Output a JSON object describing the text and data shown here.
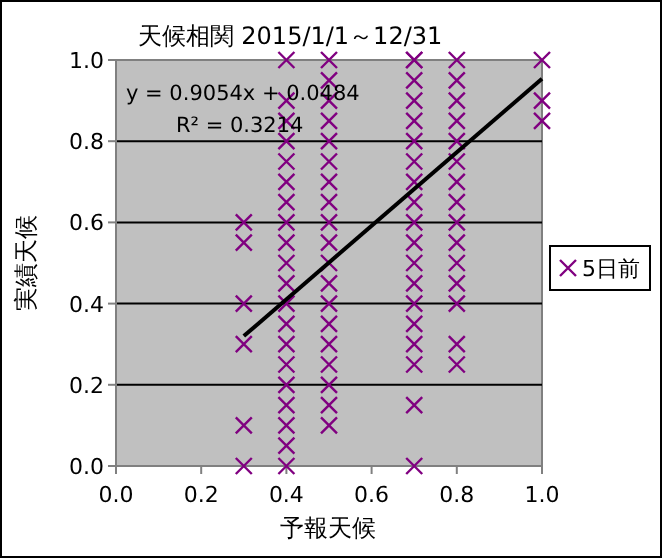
{
  "chart_data": {
    "type": "scatter",
    "title": "天候相関 2015/1/1～12/31",
    "xlabel": "予報天候",
    "ylabel": "実績天候",
    "xlim": [
      0,
      1
    ],
    "ylim": [
      0,
      1
    ],
    "xticks": [
      {
        "value": 0,
        "label": "0.0"
      },
      {
        "value": 0.2,
        "label": "0.2"
      },
      {
        "value": 0.4,
        "label": "0.4"
      },
      {
        "value": 0.6,
        "label": "0.6"
      },
      {
        "value": 0.8,
        "label": "0.8"
      },
      {
        "value": 1,
        "label": "1.0"
      }
    ],
    "yticks": [
      {
        "value": 0,
        "label": "0.0"
      },
      {
        "value": 0.2,
        "label": "0.2"
      },
      {
        "value": 0.4,
        "label": "0.4"
      },
      {
        "value": 0.6,
        "label": "0.6"
      },
      {
        "value": 0.8,
        "label": "0.8"
      },
      {
        "value": 1,
        "label": "1.0"
      }
    ],
    "grid": "y",
    "legend": "right",
    "marker": "cross",
    "annotations": [
      "y = 0.9054x + 0.0484",
      "R² = 0.3214"
    ],
    "series": [
      {
        "name": "5日前",
        "color": "#800080",
        "x": [
          0.3,
          0.3,
          0.3,
          0.3,
          0.3,
          0.3,
          0.4,
          0.4,
          0.4,
          0.4,
          0.4,
          0.4,
          0.4,
          0.4,
          0.4,
          0.4,
          0.4,
          0.4,
          0.4,
          0.4,
          0.4,
          0.4,
          0.4,
          0.4,
          0.4,
          0.4,
          0.5,
          0.5,
          0.5,
          0.5,
          0.5,
          0.5,
          0.5,
          0.5,
          0.5,
          0.5,
          0.5,
          0.5,
          0.5,
          0.5,
          0.5,
          0.5,
          0.5,
          0.5,
          0.5,
          0.7,
          0.7,
          0.7,
          0.7,
          0.7,
          0.7,
          0.7,
          0.7,
          0.7,
          0.7,
          0.7,
          0.7,
          0.7,
          0.7,
          0.7,
          0.7,
          0.7,
          0.7,
          0.7,
          0.8,
          0.8,
          0.8,
          0.8,
          0.8,
          0.8,
          0.8,
          0.8,
          0.8,
          0.8,
          0.8,
          0.8,
          0.8,
          0.8,
          0.8,
          1,
          1,
          1
        ],
        "values": [
          0,
          0.1,
          0.3,
          0.4,
          0.55,
          0.6,
          0,
          0.05,
          0.1,
          0.15,
          0.2,
          0.25,
          0.3,
          0.35,
          0.4,
          0.45,
          0.5,
          0.55,
          0.6,
          0.65,
          0.7,
          0.75,
          0.8,
          0.85,
          0.9,
          1,
          0.1,
          0.15,
          0.2,
          0.25,
          0.3,
          0.35,
          0.4,
          0.45,
          0.5,
          0.55,
          0.6,
          0.65,
          0.7,
          0.75,
          0.8,
          0.85,
          0.9,
          0.95,
          1,
          0,
          0.15,
          0.25,
          0.3,
          0.35,
          0.4,
          0.45,
          0.5,
          0.55,
          0.6,
          0.65,
          0.7,
          0.75,
          0.8,
          0.85,
          0.9,
          0.95,
          1,
          1,
          0.25,
          0.3,
          0.4,
          0.45,
          0.5,
          0.55,
          0.6,
          0.65,
          0.7,
          0.75,
          0.8,
          0.85,
          0.9,
          0.95,
          1,
          0.85,
          0.9,
          1
        ]
      },
      {
        "type": "line",
        "marker": "none",
        "color": "#000000",
        "x": [
          0.3,
          1
        ],
        "values": [
          0.32,
          0.954
        ]
      }
    ]
  }
}
